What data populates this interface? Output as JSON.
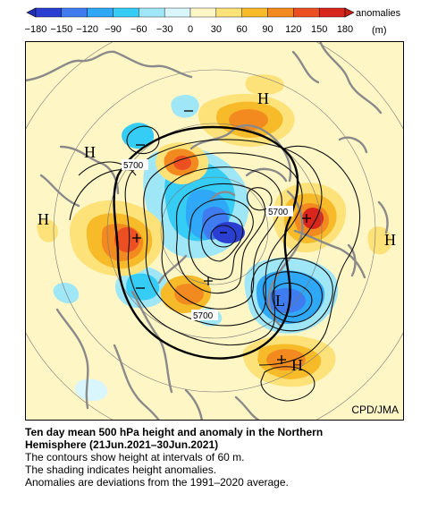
{
  "colorbar": {
    "ticks": [
      "−180",
      "−150",
      "−120",
      "−90",
      "−60",
      "−30",
      "0",
      "30",
      "60",
      "90",
      "120",
      "150",
      "180"
    ],
    "unit_label": "anomalies",
    "unit": "(m)",
    "colors": [
      "#2a3fd1",
      "#3f7cf0",
      "#2ea8f7",
      "#35ccf5",
      "#9fe6f7",
      "#d8f6fb",
      "#fff6c6",
      "#fde27a",
      "#f7bb2a",
      "#f38a1f",
      "#ec4f22",
      "#d8261d"
    ]
  },
  "map": {
    "contour_labels": [
      "5700",
      "5700",
      "5700"
    ],
    "high_markers": [
      "H",
      "H",
      "H",
      "H",
      "H"
    ],
    "low_markers": [
      "L"
    ],
    "credit": "CPD/JMA"
  },
  "caption": {
    "title_line1": "Ten day mean 500 hPa height and anomaly in the Northern",
    "title_line2": "Hemisphere (21Jun.2021–30Jun.2021)",
    "line1": "The contours show height at intervals of 60 m.",
    "line2": "The shading indicates height anomalies.",
    "line3": "Anomalies are deviations from the 1991–2020 average."
  }
}
